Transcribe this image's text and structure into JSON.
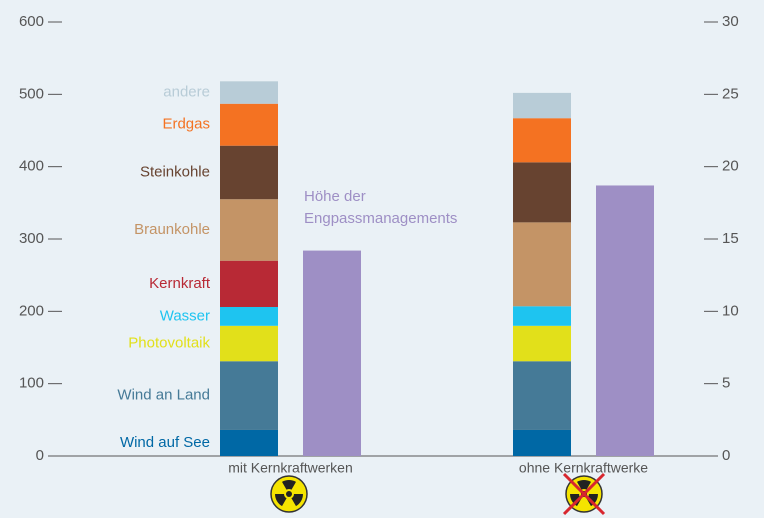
{
  "chart_data": {
    "type": "bar",
    "stacked": true,
    "categories": [
      "mit Kernkraftwerken",
      "ohne Kernkraftwerke"
    ],
    "ylim": [
      0,
      600
    ],
    "yticks": [
      0,
      100,
      200,
      300,
      400,
      500,
      600
    ],
    "y2lim": [
      0,
      30
    ],
    "y2ticks": [
      0,
      5,
      10,
      15,
      20,
      25,
      30
    ],
    "series": [
      {
        "name": "Wind auf See",
        "color": "#0068a5",
        "values": [
          36,
          36
        ]
      },
      {
        "name": "Wind an Land",
        "color": "#457a97",
        "values": [
          95,
          95
        ]
      },
      {
        "name": "Photovoltaik",
        "color": "#e2e01a",
        "values": [
          49,
          49
        ]
      },
      {
        "name": "Wasser",
        "color": "#1ec4f0",
        "values": [
          26,
          27
        ]
      },
      {
        "name": "Kernkraft",
        "color": "#b82935",
        "values": [
          64,
          0
        ]
      },
      {
        "name": "Braunkohle",
        "color": "#c49466",
        "values": [
          85,
          116
        ]
      },
      {
        "name": "Steinkohle",
        "color": "#674330",
        "values": [
          74,
          83
        ]
      },
      {
        "name": "Erdgas",
        "color": "#f47222",
        "values": [
          58,
          61
        ]
      },
      {
        "name": "andere",
        "color": "#b8ccd7",
        "values": [
          31,
          35
        ]
      },
      {
        "name": "Höhe der Engpassmanagements",
        "color": "#9e8fc5",
        "axis": "y2",
        "values": [
          14.2,
          18.7
        ]
      }
    ]
  }
}
